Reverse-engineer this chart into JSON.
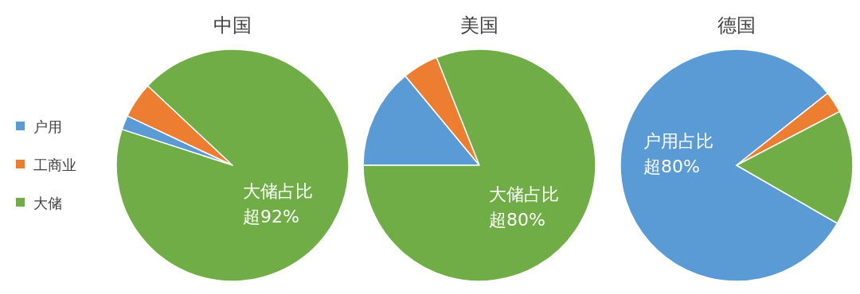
{
  "chart_data": [
    {
      "type": "pie",
      "title": "中国",
      "categories": [
        "户用",
        "工商业",
        "大储"
      ],
      "values": [
        2,
        5,
        93
      ],
      "colors": [
        "#5b9bd5",
        "#ed7d31",
        "#70ad47"
      ],
      "legend": "left",
      "annotations": [
        "大储占比",
        "超92%"
      ]
    },
    {
      "type": "pie",
      "title": "美国",
      "categories": [
        null,
        null,
        null
      ],
      "values": [
        14,
        5,
        81
      ],
      "colors": [
        "#5b9bd5",
        "#ed7d31",
        "#70ad47"
      ],
      "annotations": [
        "大储占比",
        "超80%"
      ]
    },
    {
      "type": "pie",
      "title": "德国",
      "categories": [
        null,
        null,
        null
      ],
      "values": [
        81,
        3,
        16
      ],
      "colors": [
        "#5b9bd5",
        "#ed7d31",
        "#70ad47"
      ],
      "annotations": [
        "户用占比",
        "超80%"
      ]
    }
  ]
}
